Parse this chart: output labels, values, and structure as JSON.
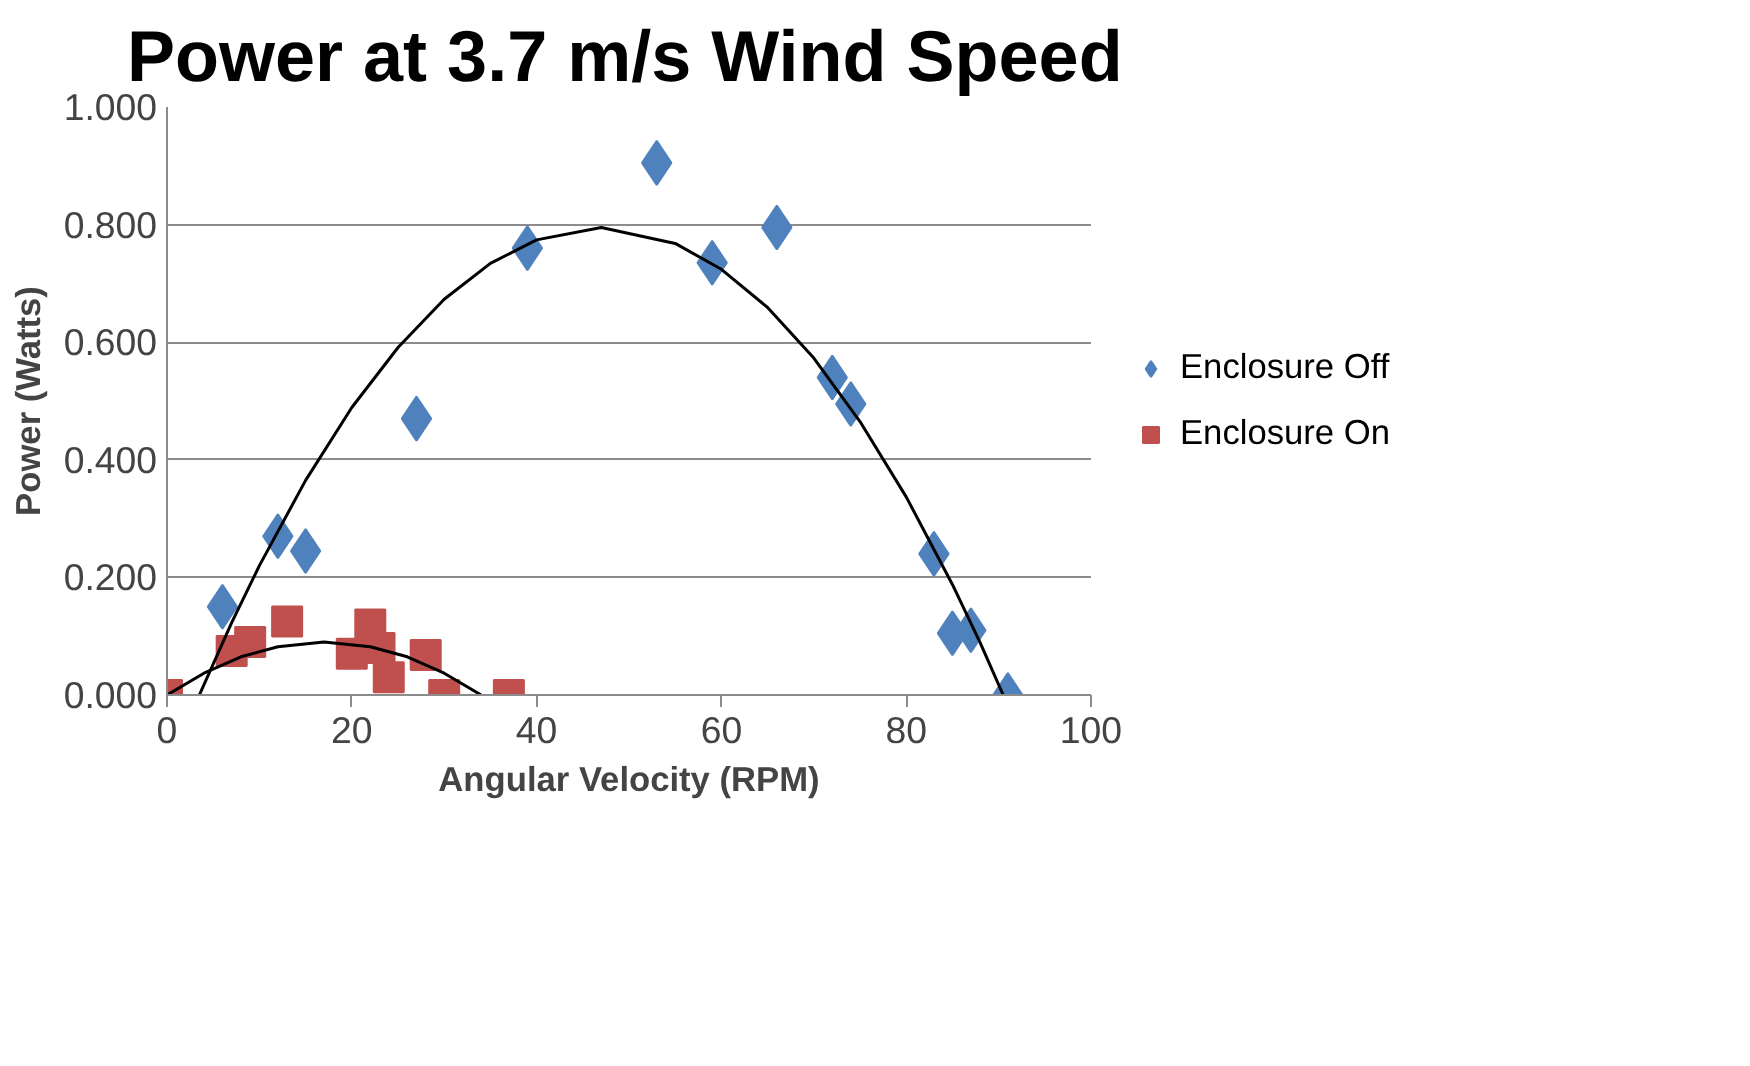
{
  "chart_data": {
    "type": "scatter",
    "title": "Power at 3.7 m/s Wind Speed",
    "xlabel": "Angular Velocity (RPM)",
    "ylabel": "Power (Watts)",
    "xlim": [
      0,
      100
    ],
    "xticks": [
      0,
      20,
      40,
      60,
      80,
      100
    ],
    "ylim": [
      0,
      1
    ],
    "yticks": [
      {
        "value": 0,
        "label": "0.000"
      },
      {
        "value": 0.2,
        "label": "0.200"
      },
      {
        "value": 0.4,
        "label": "0.400"
      },
      {
        "value": 0.6,
        "label": "0.600"
      },
      {
        "value": 0.8,
        "label": "0.800"
      },
      {
        "value": 1,
        "label": "1.000"
      }
    ],
    "grid": "y",
    "legend": "right",
    "series": [
      {
        "name": "Enclosure Off",
        "color": "#4f81bd",
        "marker": "diamond",
        "x": [
          6,
          12,
          15,
          27,
          39,
          53,
          59,
          66,
          72,
          74,
          83,
          85,
          87,
          91
        ],
        "values": [
          0.15,
          0.27,
          0.245,
          0.47,
          0.76,
          0.905,
          0.735,
          0.795,
          0.54,
          0.495,
          0.24,
          0.105,
          0.11,
          0.0
        ]
      },
      {
        "name": "Enclosure On",
        "color": "#c0504d",
        "marker": "square",
        "x": [
          0,
          7,
          9,
          13,
          20,
          22,
          23,
          24,
          28,
          30,
          37
        ],
        "values": [
          0.0,
          0.075,
          0.09,
          0.125,
          0.07,
          0.12,
          0.08,
          0.03,
          0.068,
          0.0,
          0.0
        ]
      },
      {
        "type": "line",
        "color": "#000000",
        "x": [
          3.5,
          7,
          10,
          15,
          20,
          25,
          30,
          35,
          40,
          47,
          55,
          60,
          65,
          70,
          75,
          80,
          85,
          88,
          90.5
        ],
        "values": [
          0.0,
          0.123,
          0.22,
          0.365,
          0.489,
          0.591,
          0.673,
          0.734,
          0.774,
          0.795,
          0.768,
          0.724,
          0.659,
          0.573,
          0.465,
          0.337,
          0.188,
          0.089,
          0.0
        ]
      },
      {
        "type": "line",
        "color": "#000000",
        "x": [
          0,
          4,
          8,
          12,
          17,
          22,
          26,
          30,
          34
        ],
        "values": [
          0.0,
          0.037,
          0.065,
          0.082,
          0.09,
          0.082,
          0.065,
          0.037,
          0.0
        ]
      }
    ]
  }
}
